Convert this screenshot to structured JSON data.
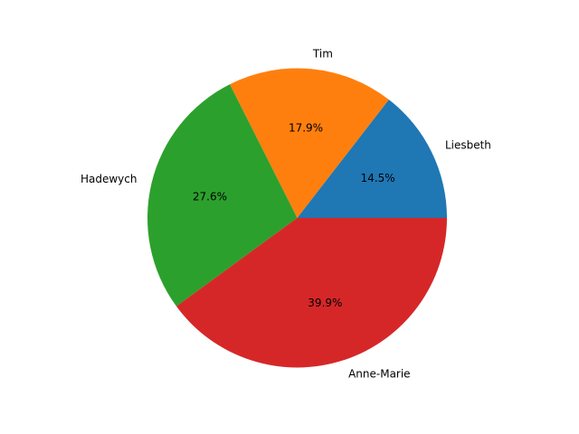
{
  "chart_data": {
    "type": "pie",
    "categories": [
      "Liesbeth",
      "Tim",
      "Hadewych",
      "Anne-Marie"
    ],
    "values": [
      14.5,
      17.9,
      27.6,
      39.9
    ],
    "percent_labels": [
      "14.5%",
      "17.9%",
      "27.6%",
      "39.9%"
    ],
    "colors": [
      "#1f77b4",
      "#ff7f0e",
      "#2ca02c",
      "#d62728"
    ],
    "start_angle_deg": 0,
    "direction": "counterclockwise",
    "legend": "none"
  }
}
